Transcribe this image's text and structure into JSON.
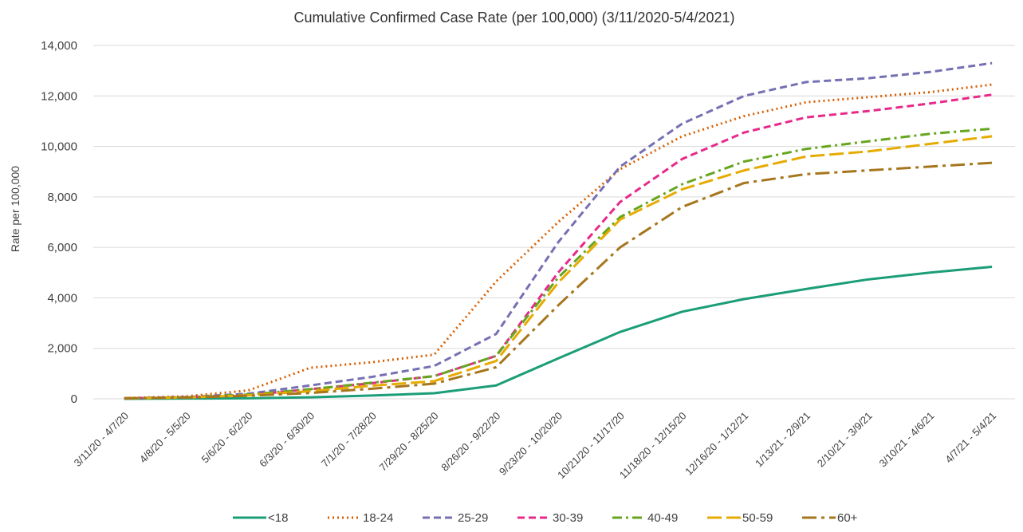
{
  "chart_data": {
    "type": "line",
    "title": "Cumulative Confirmed Case Rate (per 100,000) (3/11/2020-5/4/2021)",
    "y_label": "Rate per 100,000",
    "categories": [
      "3/11/20 - 4/7/20",
      "4/8/20 - 5/5/20",
      "5/6/20 - 6/2/20",
      "6/3/20 - 6/30/20",
      "7/1/20 - 7/28/20",
      "7/29/20 - 8/25/20",
      "8/26/20 - 9/22/20",
      "9/23/20 - 10/20/20",
      "10/21/20 - 11/17/20",
      "11/18/20 - 12/15/20",
      "12/16/20 - 1/12/21",
      "1/13/21 - 2/9/21",
      "2/10/21 - 3/9/21",
      "3/10/21 - 4/6/21",
      "4/7/21 - 5/4/21"
    ],
    "ylim": [
      0,
      14000
    ],
    "yticks": [
      0,
      {
        "value": 2000,
        "label": "2,000"
      },
      {
        "value": 4000,
        "label": "4,000"
      },
      {
        "value": 6000,
        "label": "6,000"
      },
      {
        "value": 8000,
        "label": "8,000"
      },
      {
        "value": 10000,
        "label": "10,000"
      },
      {
        "value": 12000,
        "label": "12,000"
      },
      {
        "value": 14000,
        "label": "14,000"
      }
    ],
    "grid": true,
    "legend": "bottom",
    "series": [
      {
        "name": "<18",
        "color": "#1b9e77",
        "dash": "solid",
        "values": [
          0,
          10,
          20,
          60,
          130,
          220,
          530,
          1600,
          2650,
          3450,
          3950,
          4350,
          4730,
          5000,
          5230
        ]
      },
      {
        "name": "18-24",
        "color": "#d95f02",
        "dash": "dotted",
        "values": [
          30,
          100,
          330,
          1230,
          1450,
          1750,
          4650,
          7000,
          9100,
          10400,
          11200,
          11750,
          11950,
          12150,
          12450
        ]
      },
      {
        "name": "25-29",
        "color": "#7570b3",
        "dash": "dashed",
        "values": [
          20,
          70,
          200,
          530,
          870,
          1300,
          2570,
          6200,
          9200,
          10900,
          12000,
          12550,
          12700,
          12950,
          13300
        ]
      },
      {
        "name": "30-39",
        "color": "#e7298a",
        "dash": "dashed",
        "values": [
          20,
          60,
          150,
          380,
          620,
          900,
          1700,
          5000,
          7800,
          9500,
          10550,
          11150,
          11400,
          11700,
          12050
        ]
      },
      {
        "name": "40-49",
        "color": "#66a61e",
        "dash": "dashdot",
        "values": [
          20,
          60,
          170,
          380,
          640,
          900,
          1700,
          4800,
          7200,
          8500,
          9400,
          9900,
          10200,
          10500,
          10700
        ]
      },
      {
        "name": "50-59",
        "color": "#e6ab02",
        "dash": "longdash",
        "values": [
          20,
          50,
          140,
          300,
          520,
          700,
          1500,
          4600,
          7100,
          8300,
          9050,
          9600,
          9800,
          10100,
          10400
        ]
      },
      {
        "name": "60+",
        "color": "#a6761d",
        "dash": "longdashdot",
        "values": [
          20,
          50,
          120,
          230,
          400,
          600,
          1250,
          3700,
          6000,
          7600,
          8550,
          8900,
          9050,
          9200,
          9350
        ]
      }
    ]
  }
}
